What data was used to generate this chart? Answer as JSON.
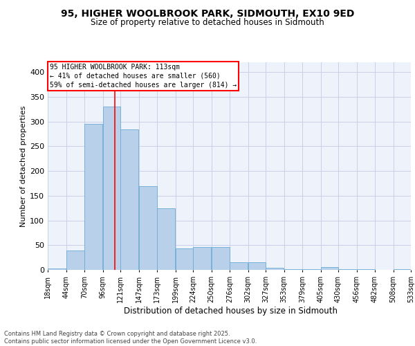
{
  "title_line1": "95, HIGHER WOOLBROOK PARK, SIDMOUTH, EX10 9ED",
  "title_line2": "Size of property relative to detached houses in Sidmouth",
  "xlabel": "Distribution of detached houses by size in Sidmouth",
  "ylabel": "Number of detached properties",
  "bar_color": "#b8d0ea",
  "bar_edge_color": "#6aaad4",
  "vline_color": "red",
  "vline_x": 113,
  "bin_edges": [
    18,
    44,
    70,
    96,
    121,
    147,
    173,
    199,
    224,
    250,
    276,
    302,
    327,
    353,
    379,
    405,
    430,
    456,
    482,
    508,
    533
  ],
  "bar_heights": [
    3,
    39,
    296,
    331,
    284,
    170,
    125,
    44,
    46,
    46,
    15,
    16,
    4,
    1,
    1,
    5,
    2,
    1,
    0,
    2
  ],
  "tick_labels": [
    "18sqm",
    "44sqm",
    "70sqm",
    "96sqm",
    "121sqm",
    "147sqm",
    "173sqm",
    "199sqm",
    "224sqm",
    "250sqm",
    "276sqm",
    "302sqm",
    "327sqm",
    "353sqm",
    "379sqm",
    "405sqm",
    "430sqm",
    "456sqm",
    "482sqm",
    "508sqm",
    "533sqm"
  ],
  "ylim": [
    0,
    420
  ],
  "yticks": [
    0,
    50,
    100,
    150,
    200,
    250,
    300,
    350,
    400
  ],
  "annotation_text": "95 HIGHER WOOLBROOK PARK: 113sqm\n← 41% of detached houses are smaller (560)\n59% of semi-detached houses are larger (814) →",
  "annotation_box_color": "white",
  "annotation_box_edge_color": "red",
  "footer_text": "Contains HM Land Registry data © Crown copyright and database right 2025.\nContains public sector information licensed under the Open Government Licence v3.0.",
  "background_color": "#eef2fb",
  "grid_color": "#c8cfe8"
}
